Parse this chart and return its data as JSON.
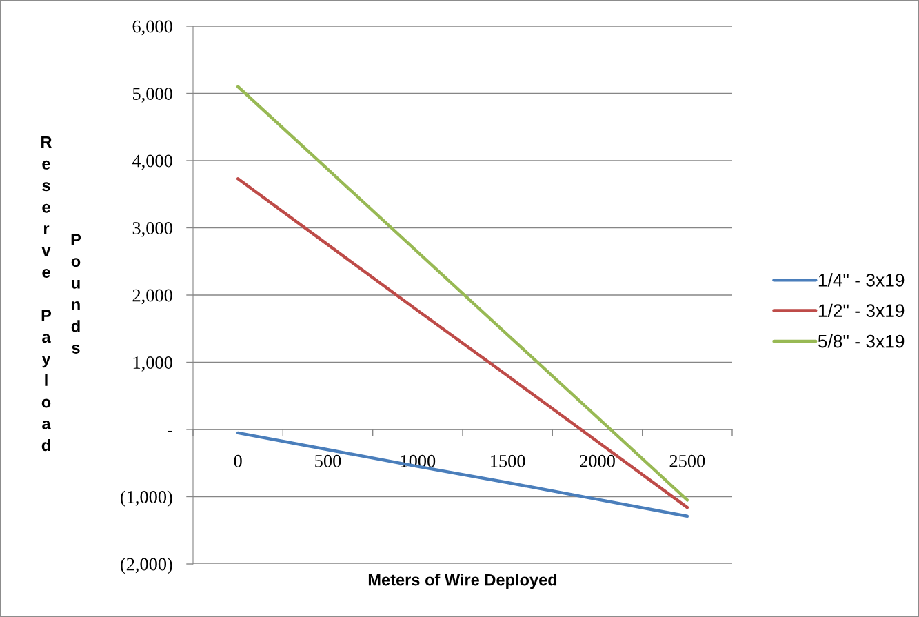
{
  "chart_data": {
    "type": "line",
    "categories": [
      "0",
      "500",
      "1000",
      "1500",
      "2000",
      "2500"
    ],
    "series": [
      {
        "name": "1/4\" - 3x19",
        "color": "#4a7ebb",
        "values": [
          -50,
          -300,
          -550,
          -790,
          -1040,
          -1290
        ]
      },
      {
        "name": "1/2\" - 3x19",
        "color": "#be4b48",
        "values": [
          3730,
          2750,
          1770,
          800,
          -180,
          -1160
        ]
      },
      {
        "name": "5/8\" - 3x19",
        "color": "#98b954",
        "values": [
          5100,
          3870,
          2640,
          1410,
          180,
          -1050
        ]
      }
    ],
    "xlabel": "Meters of Wire Deployed",
    "ylabel": "Reserve Payload\nPounds",
    "ylim": [
      -2000,
      6000
    ],
    "yticks": [
      {
        "value": -2000,
        "label": "(2,000)"
      },
      {
        "value": -1000,
        "label": "(1,000)"
      },
      {
        "value": 0,
        "label": "-"
      },
      {
        "value": 1000,
        "label": "1,000"
      },
      {
        "value": 2000,
        "label": "2,000"
      },
      {
        "value": 3000,
        "label": "3,000"
      },
      {
        "value": 4000,
        "label": "4,000"
      },
      {
        "value": 5000,
        "label": "5,000"
      },
      {
        "value": 6000,
        "label": "6,000"
      }
    ],
    "grid": "y",
    "legend": "right"
  }
}
